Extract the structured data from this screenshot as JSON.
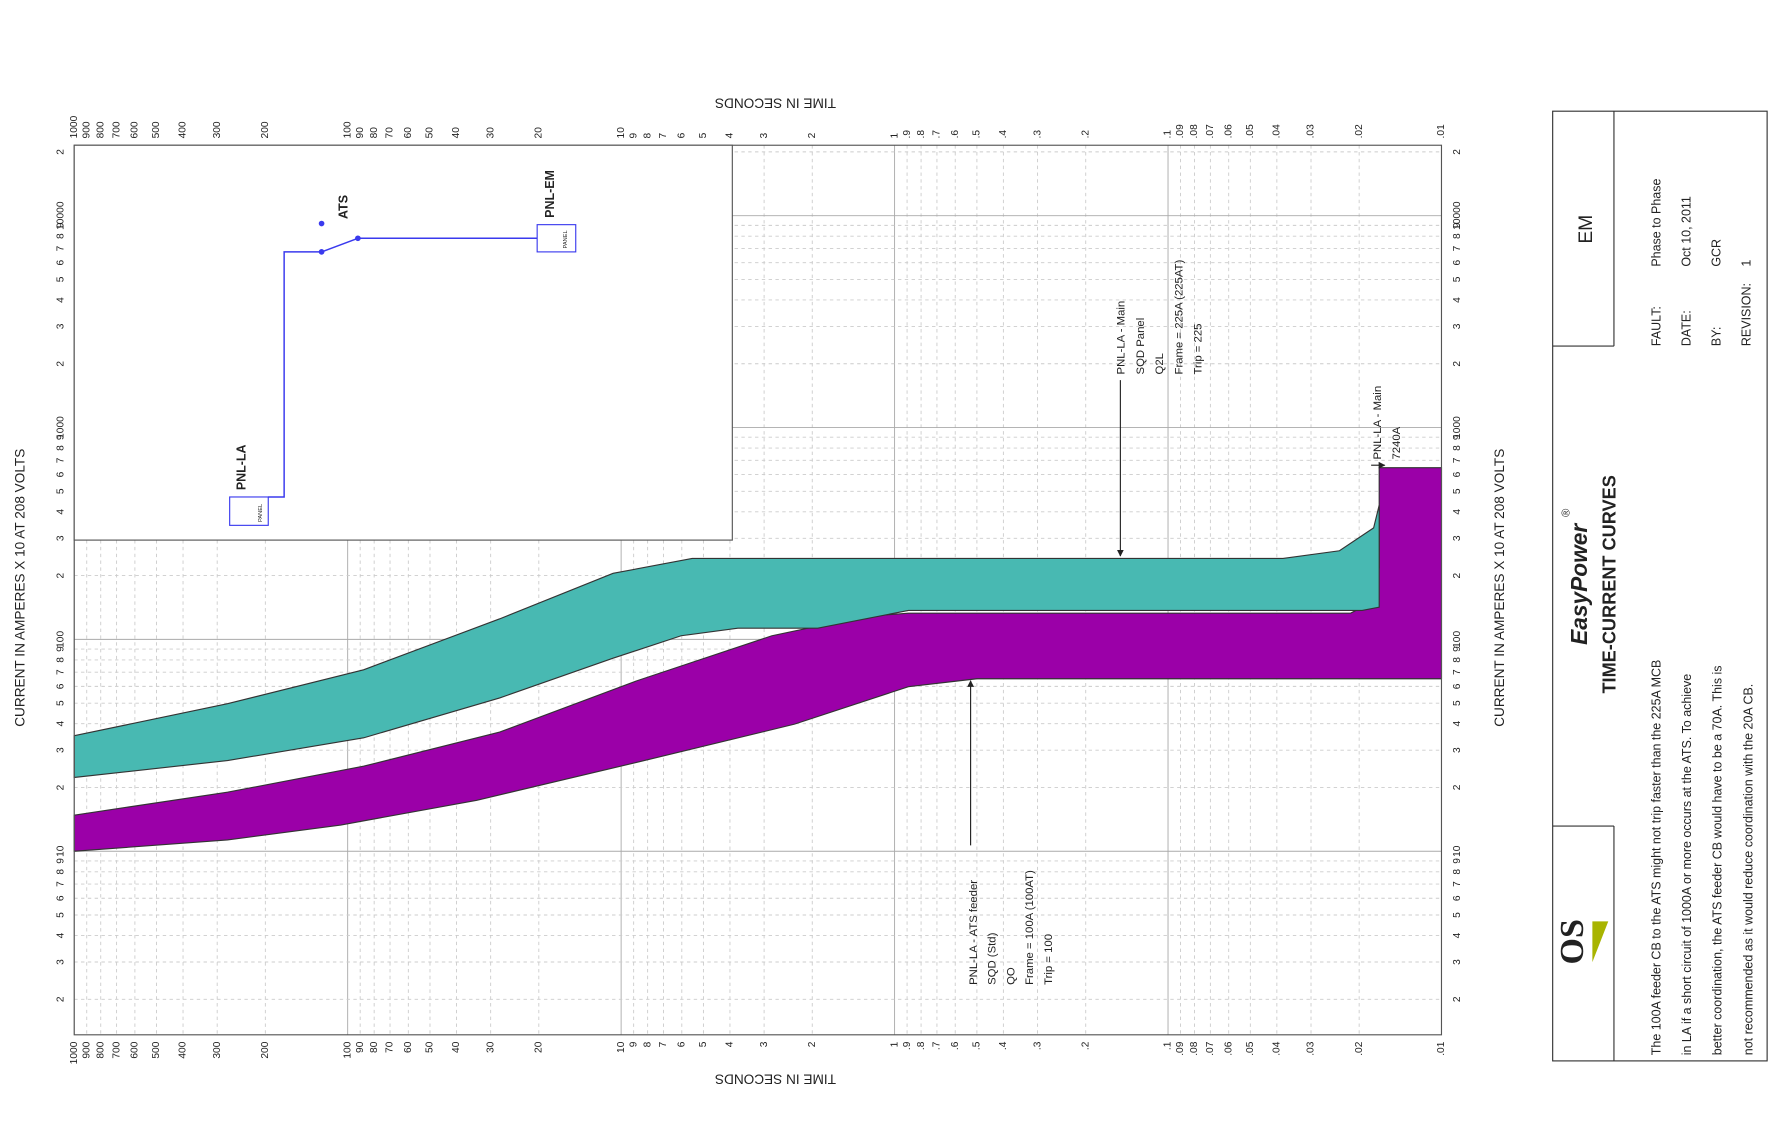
{
  "chart_data": {
    "type": "band",
    "xlabel": "TIME IN SECONDS",
    "ylabel": "CURRENT IN AMPERES X 10 AT 208 VOLTS",
    "xscale": "log",
    "yscale": "log",
    "grid": true,
    "xlim": [
      1000,
      0.01
    ],
    "ylim": [
      1.36,
      21500
    ],
    "xticks": [
      1000,
      900,
      800,
      700,
      600,
      500,
      400,
      300,
      200,
      100,
      90,
      80,
      70,
      60,
      50,
      40,
      30,
      20,
      10,
      9,
      8,
      7,
      6,
      5,
      4,
      3,
      2,
      1,
      {
        "value": 0.9,
        "label": ".9"
      },
      {
        "value": 0.8,
        "label": ".8"
      },
      {
        "value": 0.7,
        "label": ".7"
      },
      {
        "value": 0.6,
        "label": ".6"
      },
      {
        "value": 0.5,
        "label": ".5"
      },
      {
        "value": 0.4,
        "label": ".4"
      },
      {
        "value": 0.3,
        "label": ".3"
      },
      {
        "value": 0.2,
        "label": ".2"
      },
      {
        "value": 0.1,
        "label": ".1"
      },
      {
        "value": 0.09,
        "label": ".09"
      },
      {
        "value": 0.08,
        "label": ".08"
      },
      {
        "value": 0.07,
        "label": ".07"
      },
      {
        "value": 0.06,
        "label": ".06"
      },
      {
        "value": 0.05,
        "label": ".05"
      },
      {
        "value": 0.04,
        "label": ".04"
      },
      {
        "value": 0.03,
        "label": ".03"
      },
      {
        "value": 0.02,
        "label": ".02"
      },
      {
        "value": 0.01,
        "label": ".01"
      }
    ],
    "yticks": [
      2,
      3,
      4,
      5,
      6,
      7,
      8,
      9,
      10,
      {
        "value": 20,
        "label": "2"
      },
      {
        "value": 30,
        "label": "3"
      },
      {
        "value": 40,
        "label": "4"
      },
      {
        "value": 50,
        "label": "5"
      },
      {
        "value": 60,
        "label": "6"
      },
      {
        "value": 70,
        "label": "7"
      },
      {
        "value": 80,
        "label": "8"
      },
      {
        "value": 90,
        "label": "9"
      },
      100,
      {
        "value": 200,
        "label": "2"
      },
      {
        "value": 300,
        "label": "3"
      },
      {
        "value": 400,
        "label": "4"
      },
      {
        "value": 500,
        "label": "5"
      },
      {
        "value": 600,
        "label": "6"
      },
      {
        "value": 700,
        "label": "7"
      },
      {
        "value": 800,
        "label": "8"
      },
      {
        "value": 900,
        "label": "9"
      },
      1000,
      {
        "value": 2000,
        "label": "2"
      },
      {
        "value": 3000,
        "label": "3"
      },
      {
        "value": 4000,
        "label": "4"
      },
      {
        "value": 5000,
        "label": "5"
      },
      {
        "value": 6000,
        "label": "6"
      },
      {
        "value": 7000,
        "label": "7"
      },
      {
        "value": 8000,
        "label": "8"
      },
      {
        "value": 9000,
        "label": "9"
      },
      10000,
      {
        "value": 20000,
        "label": "2"
      }
    ],
    "series": [
      {
        "color": "#9b00a8",
        "x": [
          1000,
          275,
          87.5,
          27.8,
          8.83,
          2.81,
          1.31,
          0.89,
          0.0215,
          0.0177,
          0.0169,
          0.0169,
          0.01,
          0.01,
          0.5,
          0.89,
          2.32,
          8.83,
          33.7,
          106,
          275,
          1000
        ],
        "values": [
          14.8,
          19.0,
          25.2,
          36.5,
          63.5,
          104,
          128,
          133,
          133,
          151,
          218,
          646,
          646,
          65.2,
          65.2,
          59.8,
          39.8,
          26.2,
          17.4,
          13.3,
          11.3,
          10
        ]
      },
      {
        "color": "#48b9b2",
        "x": [
          1000,
          275,
          87.5,
          27.8,
          10.7,
          5.5,
          0.038,
          0.0236,
          0.0177,
          0.0169,
          0.0169,
          0.0195,
          0.89,
          1.91,
          3.74,
          6.03,
          10.7,
          27.8,
          87.5,
          275,
          1000
        ],
        "values": [
          35.1,
          49.7,
          71.9,
          125,
          205,
          241,
          241,
          262,
          336,
          430,
          142,
          137,
          137,
          113,
          113,
          104,
          81.5,
          52.9,
          34.3,
          26.8,
          22.3
        ]
      }
    ],
    "annotations": [
      {
        "lines": [
          "PNL-LA - ATS feeder",
          "SQD (Std)",
          "QO",
          "Frame = 100A (100AT)",
          "Trip = 100"
        ]
      },
      {
        "lines": [
          "PNL-LA - Main",
          "SQD Panel",
          "Q2L",
          "Frame = 225A (225AT)",
          "Trip = 225"
        ]
      },
      {
        "lines": [
          "PNL-LA - Main",
          "7240A"
        ]
      }
    ]
  },
  "one_line": {
    "nodes": [
      {
        "label": "PNL-LA",
        "symbol": "PANEL"
      },
      {
        "label": "ATS"
      },
      {
        "label": "PNL-EM",
        "symbol": "PANEL"
      }
    ]
  },
  "title_block": {
    "drawing": "EM",
    "logo": "OS",
    "brand": "EasyPower",
    "mark": "®",
    "title": "TIME-CURRENT CURVES",
    "fields": [
      {
        "label": "FAULT:",
        "value": "Phase to Phase"
      },
      {
        "label": "DATE:",
        "value": "Oct 10, 2011"
      },
      {
        "label": "BY:",
        "value": "GCR"
      },
      {
        "label": "REVISION:",
        "value": "1"
      }
    ],
    "notes": [
      "The 100A feeder CB to the ATS might not trip faster than the 225A MCB",
      "in LA if a short circuit of 1000A or more occurs at the ATS. To achieve",
      "better coordination, the ATS feeder CB would have to be a 70A. This is",
      "not recommended as it would reduce coordination with the 20A CB."
    ]
  }
}
